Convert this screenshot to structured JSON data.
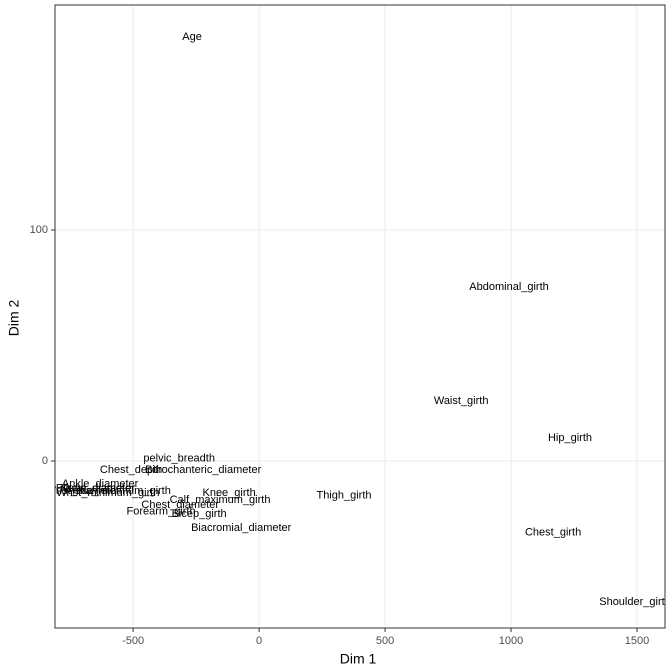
{
  "chart_data": {
    "type": "scatter",
    "x_label": "Dim 1",
    "y_label": "Dim 2",
    "labels": [
      "Age",
      "Abdominal_girth",
      "Waist_girth",
      "Hip_girth",
      "Chest_girth",
      "Shoulder_girth",
      "Thigh_girth",
      "Biacromial_diameter",
      "pelvic_breadth",
      "Bitrochanteric_diameter",
      "Chest_depth",
      "Ankle_diameter",
      "Knee_girth",
      "Chest_diameter",
      "Calf_maximum_girth",
      "Forearm_girth",
      "Bicep_girth",
      "Elbow_diameter",
      "Wrist_diameter",
      "Knee_diameter",
      "Ankle_minimum_girth",
      "Wrist_minimum_girth"
    ],
    "x": [
      -266,
      992,
      802,
      1234,
      1167,
      1492,
      337,
      -71,
      -317,
      -222,
      -508,
      -631,
      -119,
      -313,
      -155,
      -389,
      -238,
      -650,
      -700,
      -640,
      -560,
      -600
    ],
    "y": [
      183.5,
      75.3,
      26,
      10,
      -31,
      -61,
      -15,
      -29,
      1,
      -4,
      -4,
      -10,
      -14,
      -19,
      -17,
      -22,
      -23,
      -12,
      -13,
      -12,
      -13,
      -14
    ],
    "color": "#000000",
    "xlim": [
      -810,
      1611
    ],
    "ylim": [
      -72.3,
      197.4
    ],
    "xticks": [
      -500,
      0,
      500,
      1000,
      1500
    ],
    "yticks": [
      0,
      100
    ],
    "grid": true
  }
}
